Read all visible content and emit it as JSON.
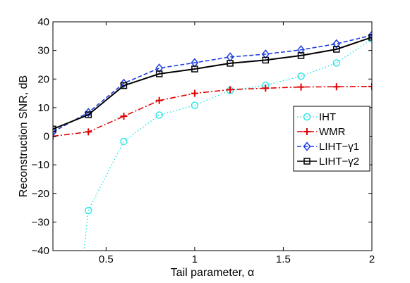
{
  "chart_data": {
    "type": "line",
    "title": "",
    "xlabel": "Tail parameter, α",
    "ylabel": "Reconstruction SNR, dB",
    "xlim": [
      0.2,
      2
    ],
    "ylim": [
      -40,
      40
    ],
    "xticks": [
      0.5,
      1,
      1.5,
      2
    ],
    "xtick_labels": [
      "0.5",
      "1",
      "1.5",
      "2"
    ],
    "yticks": [
      -40,
      -30,
      -20,
      -10,
      0,
      10,
      20,
      30,
      40
    ],
    "ytick_labels": [
      "−40",
      "−30",
      "−20",
      "−10",
      "0",
      "10",
      "20",
      "30",
      "40"
    ],
    "grid": false,
    "legend_position": "right",
    "x": [
      0.2,
      0.4,
      0.6,
      0.8,
      1.0,
      1.2,
      1.4,
      1.6,
      1.8,
      2.0
    ],
    "series": [
      {
        "name": "IHT",
        "color": "#33e6e6",
        "line_style": "dotted",
        "marker": "circle",
        "x": [
          0.4,
          0.6,
          0.8,
          1.0,
          1.2,
          1.4,
          1.6,
          1.8,
          2.0
        ],
        "values": [
          -26,
          -1.8,
          7.4,
          10.8,
          16,
          17.8,
          21,
          25.6,
          34
        ]
      },
      {
        "name": "WMR",
        "color": "#e00000",
        "line_style": "dashdot",
        "marker": "plus",
        "x": [
          0.2,
          0.4,
          0.6,
          0.8,
          1.0,
          1.2,
          1.4,
          1.6,
          1.8,
          2.0
        ],
        "values": [
          0,
          1.5,
          7,
          12.5,
          15,
          16.3,
          16.8,
          17.2,
          17.3,
          17.4
        ]
      },
      {
        "name": "LIHT−γ1",
        "color": "#1f3fe0",
        "line_style": "dashed",
        "marker": "diamond",
        "x": [
          0.2,
          0.4,
          0.6,
          0.8,
          1.0,
          1.2,
          1.4,
          1.6,
          1.8,
          2.0
        ],
        "values": [
          1.5,
          8.3,
          18.5,
          23.8,
          25.7,
          27.7,
          28.7,
          30.2,
          32.3,
          35.3
        ]
      },
      {
        "name": "LIHT−γ2",
        "color": "#000000",
        "line_style": "solid",
        "marker": "square",
        "x": [
          0.2,
          0.4,
          0.6,
          0.8,
          1.0,
          1.2,
          1.4,
          1.6,
          1.8,
          2.0
        ],
        "values": [
          2.5,
          7.5,
          17.7,
          21.8,
          23.5,
          25.5,
          26.6,
          28.2,
          30.4,
          34.6
        ]
      }
    ]
  }
}
